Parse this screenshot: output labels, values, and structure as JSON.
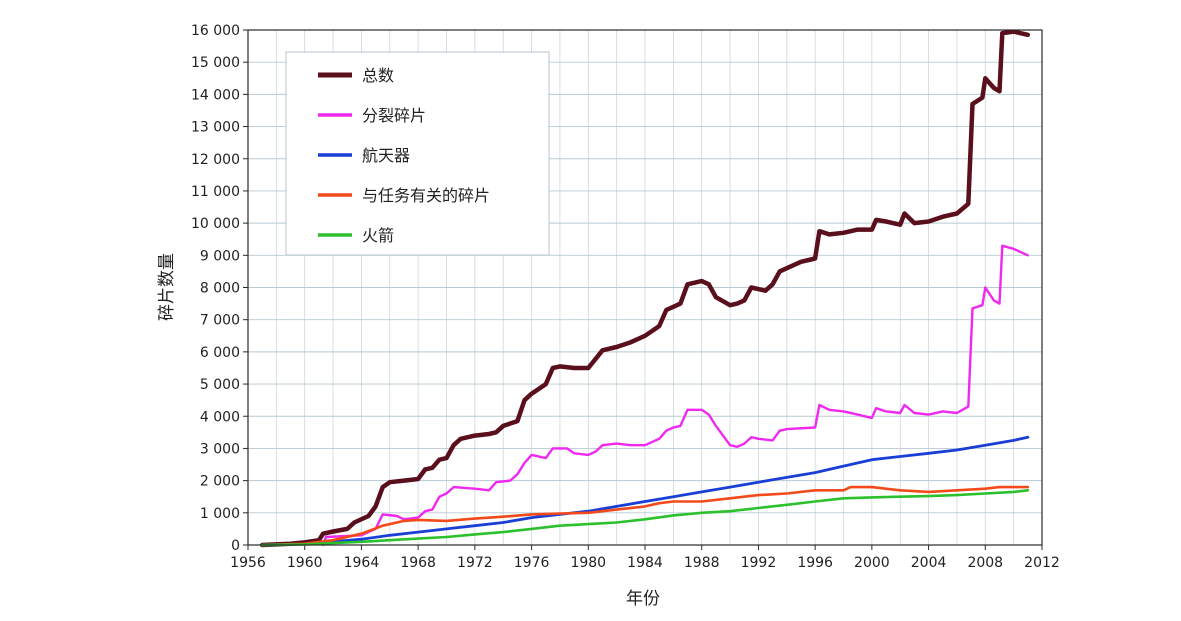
{
  "chart_data": {
    "type": "line",
    "title": "",
    "xlabel": "年份",
    "ylabel": "碎片数量",
    "xlim": [
      1956,
      2012
    ],
    "ylim": [
      0,
      16000
    ],
    "grid": true,
    "legend_position": "top-left",
    "x_ticks": [
      "1956",
      "1960",
      "1964",
      "1968",
      "1972",
      "1976",
      "1980",
      "1984",
      "1988",
      "1992",
      "1996",
      "2000",
      "2004",
      "2008",
      "2012"
    ],
    "y_ticks": [
      "0",
      "1 000",
      "2 000",
      "3 000",
      "4 000",
      "5 000",
      "6 000",
      "7 000",
      "8 000",
      "9 000",
      "10 000",
      "11 000",
      "12 000",
      "13 000",
      "14 000",
      "15 000",
      "16 000"
    ],
    "series": [
      {
        "name": "总数",
        "color": "#5a0f1c",
        "points": [
          [
            1957.0,
            0
          ],
          [
            1958,
            20
          ],
          [
            1959,
            40
          ],
          [
            1960,
            80
          ],
          [
            1961,
            150
          ],
          [
            1961.3,
            350
          ],
          [
            1962,
            420
          ],
          [
            1963,
            500
          ],
          [
            1963.5,
            700
          ],
          [
            1964.5,
            900
          ],
          [
            1965,
            1200
          ],
          [
            1965.5,
            1800
          ],
          [
            1966,
            1950
          ],
          [
            1967,
            2000
          ],
          [
            1968,
            2050
          ],
          [
            1968.5,
            2350
          ],
          [
            1969,
            2400
          ],
          [
            1969.5,
            2650
          ],
          [
            1970,
            2700
          ],
          [
            1970.5,
            3100
          ],
          [
            1971,
            3300
          ],
          [
            1972,
            3400
          ],
          [
            1973,
            3450
          ],
          [
            1973.5,
            3500
          ],
          [
            1974,
            3700
          ],
          [
            1975,
            3850
          ],
          [
            1975.5,
            4500
          ],
          [
            1976,
            4700
          ],
          [
            1977,
            5000
          ],
          [
            1977.5,
            5500
          ],
          [
            1978,
            5550
          ],
          [
            1979,
            5500
          ],
          [
            1980,
            5500
          ],
          [
            1981,
            6050
          ],
          [
            1982,
            6150
          ],
          [
            1983,
            6300
          ],
          [
            1984,
            6500
          ],
          [
            1985,
            6800
          ],
          [
            1985.5,
            7300
          ],
          [
            1986,
            7400
          ],
          [
            1986.5,
            7500
          ],
          [
            1987,
            8100
          ],
          [
            1987.5,
            8150
          ],
          [
            1988,
            8200
          ],
          [
            1988.5,
            8100
          ],
          [
            1989,
            7700
          ],
          [
            1990,
            7450
          ],
          [
            1990.5,
            7500
          ],
          [
            1991,
            7600
          ],
          [
            1991.5,
            8000
          ],
          [
            1992,
            7950
          ],
          [
            1992.5,
            7900
          ],
          [
            1993,
            8100
          ],
          [
            1993.5,
            8500
          ],
          [
            1994,
            8600
          ],
          [
            1995,
            8800
          ],
          [
            1996,
            8900
          ],
          [
            1996.3,
            9750
          ],
          [
            1997,
            9650
          ],
          [
            1998,
            9700
          ],
          [
            1999,
            9800
          ],
          [
            2000,
            9800
          ],
          [
            2000.3,
            10100
          ],
          [
            2001,
            10050
          ],
          [
            2002,
            9950
          ],
          [
            2002.3,
            10300
          ],
          [
            2003,
            10000
          ],
          [
            2004,
            10050
          ],
          [
            2005,
            10200
          ],
          [
            2006,
            10300
          ],
          [
            2006.8,
            10600
          ],
          [
            2007.1,
            13700
          ],
          [
            2007.8,
            13900
          ],
          [
            2008,
            14500
          ],
          [
            2008.6,
            14200
          ],
          [
            2009,
            14100
          ],
          [
            2009.2,
            15900
          ],
          [
            2010,
            15950
          ],
          [
            2011,
            15850
          ]
        ]
      },
      {
        "name": "分裂碎片",
        "color": "#f028f0",
        "points": [
          [
            1961.3,
            0
          ],
          [
            1961.5,
            250
          ],
          [
            1963,
            280
          ],
          [
            1964,
            300
          ],
          [
            1965,
            500
          ],
          [
            1965.5,
            950
          ],
          [
            1966.5,
            900
          ],
          [
            1967,
            800
          ],
          [
            1968,
            850
          ],
          [
            1968.5,
            1050
          ],
          [
            1969,
            1100
          ],
          [
            1969.5,
            1500
          ],
          [
            1970,
            1600
          ],
          [
            1970.5,
            1800
          ],
          [
            1972,
            1750
          ],
          [
            1973,
            1700
          ],
          [
            1973.5,
            1950
          ],
          [
            1974.5,
            2000
          ],
          [
            1975,
            2200
          ],
          [
            1975.5,
            2550
          ],
          [
            1976,
            2800
          ],
          [
            1977,
            2700
          ],
          [
            1977.5,
            3000
          ],
          [
            1978.5,
            3000
          ],
          [
            1979,
            2850
          ],
          [
            1980,
            2800
          ],
          [
            1980.5,
            2900
          ],
          [
            1981,
            3100
          ],
          [
            1982,
            3150
          ],
          [
            1983,
            3100
          ],
          [
            1984,
            3100
          ],
          [
            1985,
            3300
          ],
          [
            1985.5,
            3550
          ],
          [
            1986,
            3650
          ],
          [
            1986.5,
            3700
          ],
          [
            1987,
            4200
          ],
          [
            1988,
            4200
          ],
          [
            1988.5,
            4050
          ],
          [
            1989,
            3700
          ],
          [
            1990,
            3100
          ],
          [
            1990.5,
            3050
          ],
          [
            1991,
            3150
          ],
          [
            1991.5,
            3350
          ],
          [
            1992,
            3300
          ],
          [
            1993,
            3250
          ],
          [
            1993.5,
            3550
          ],
          [
            1994,
            3600
          ],
          [
            1996,
            3650
          ],
          [
            1996.3,
            4350
          ],
          [
            1997,
            4200
          ],
          [
            1998,
            4150
          ],
          [
            1999,
            4050
          ],
          [
            1999.5,
            4000
          ],
          [
            2000,
            3950
          ],
          [
            2000.3,
            4250
          ],
          [
            2001,
            4150
          ],
          [
            2002,
            4100
          ],
          [
            2002.3,
            4350
          ],
          [
            2003,
            4100
          ],
          [
            2004,
            4050
          ],
          [
            2005,
            4150
          ],
          [
            2006,
            4100
          ],
          [
            2006.8,
            4300
          ],
          [
            2007.1,
            7350
          ],
          [
            2007.8,
            7450
          ],
          [
            2008,
            8000
          ],
          [
            2008.6,
            7600
          ],
          [
            2009,
            7500
          ],
          [
            2009.2,
            9300
          ],
          [
            2010,
            9200
          ],
          [
            2011,
            9000
          ]
        ]
      },
      {
        "name": "航天器",
        "color": "#1a3fd6",
        "points": [
          [
            1957,
            0
          ],
          [
            1960,
            30
          ],
          [
            1962,
            100
          ],
          [
            1964,
            180
          ],
          [
            1966,
            300
          ],
          [
            1968,
            400
          ],
          [
            1970,
            500
          ],
          [
            1972,
            600
          ],
          [
            1974,
            700
          ],
          [
            1976,
            850
          ],
          [
            1978,
            950
          ],
          [
            1980,
            1050
          ],
          [
            1982,
            1200
          ],
          [
            1984,
            1350
          ],
          [
            1986,
            1500
          ],
          [
            1988,
            1650
          ],
          [
            1990,
            1800
          ],
          [
            1992,
            1950
          ],
          [
            1994,
            2100
          ],
          [
            1996,
            2250
          ],
          [
            1998,
            2450
          ],
          [
            2000,
            2650
          ],
          [
            2002,
            2750
          ],
          [
            2004,
            2850
          ],
          [
            2006,
            2950
          ],
          [
            2008,
            3100
          ],
          [
            2010,
            3250
          ],
          [
            2011,
            3350
          ]
        ]
      },
      {
        "name": "与任务有关的碎片",
        "color": "#f24a1a",
        "points": [
          [
            1957,
            0
          ],
          [
            1960,
            40
          ],
          [
            1962,
            150
          ],
          [
            1964,
            350
          ],
          [
            1965.5,
            600
          ],
          [
            1967,
            750
          ],
          [
            1968,
            780
          ],
          [
            1970,
            750
          ],
          [
            1972,
            820
          ],
          [
            1974,
            880
          ],
          [
            1976,
            950
          ],
          [
            1978,
            980
          ],
          [
            1980,
            1000
          ],
          [
            1982,
            1100
          ],
          [
            1984,
            1200
          ],
          [
            1985,
            1300
          ],
          [
            1986,
            1350
          ],
          [
            1988,
            1350
          ],
          [
            1990,
            1450
          ],
          [
            1992,
            1550
          ],
          [
            1994,
            1600
          ],
          [
            1996,
            1700
          ],
          [
            1998,
            1700
          ],
          [
            1998.5,
            1800
          ],
          [
            2000,
            1800
          ],
          [
            2002,
            1700
          ],
          [
            2004,
            1650
          ],
          [
            2006,
            1700
          ],
          [
            2008,
            1750
          ],
          [
            2009,
            1800
          ],
          [
            2011,
            1800
          ]
        ]
      },
      {
        "name": "火箭",
        "color": "#2cc12c",
        "points": [
          [
            1957,
            0
          ],
          [
            1960,
            20
          ],
          [
            1962,
            60
          ],
          [
            1964,
            100
          ],
          [
            1966,
            150
          ],
          [
            1968,
            200
          ],
          [
            1970,
            250
          ],
          [
            1972,
            330
          ],
          [
            1974,
            400
          ],
          [
            1976,
            500
          ],
          [
            1978,
            600
          ],
          [
            1980,
            650
          ],
          [
            1982,
            700
          ],
          [
            1984,
            800
          ],
          [
            1986,
            920
          ],
          [
            1988,
            1000
          ],
          [
            1990,
            1050
          ],
          [
            1992,
            1150
          ],
          [
            1994,
            1250
          ],
          [
            1996,
            1350
          ],
          [
            1998,
            1450
          ],
          [
            2000,
            1480
          ],
          [
            2002,
            1500
          ],
          [
            2004,
            1520
          ],
          [
            2006,
            1550
          ],
          [
            2008,
            1600
          ],
          [
            2010,
            1650
          ],
          [
            2011,
            1700
          ]
        ]
      }
    ]
  }
}
